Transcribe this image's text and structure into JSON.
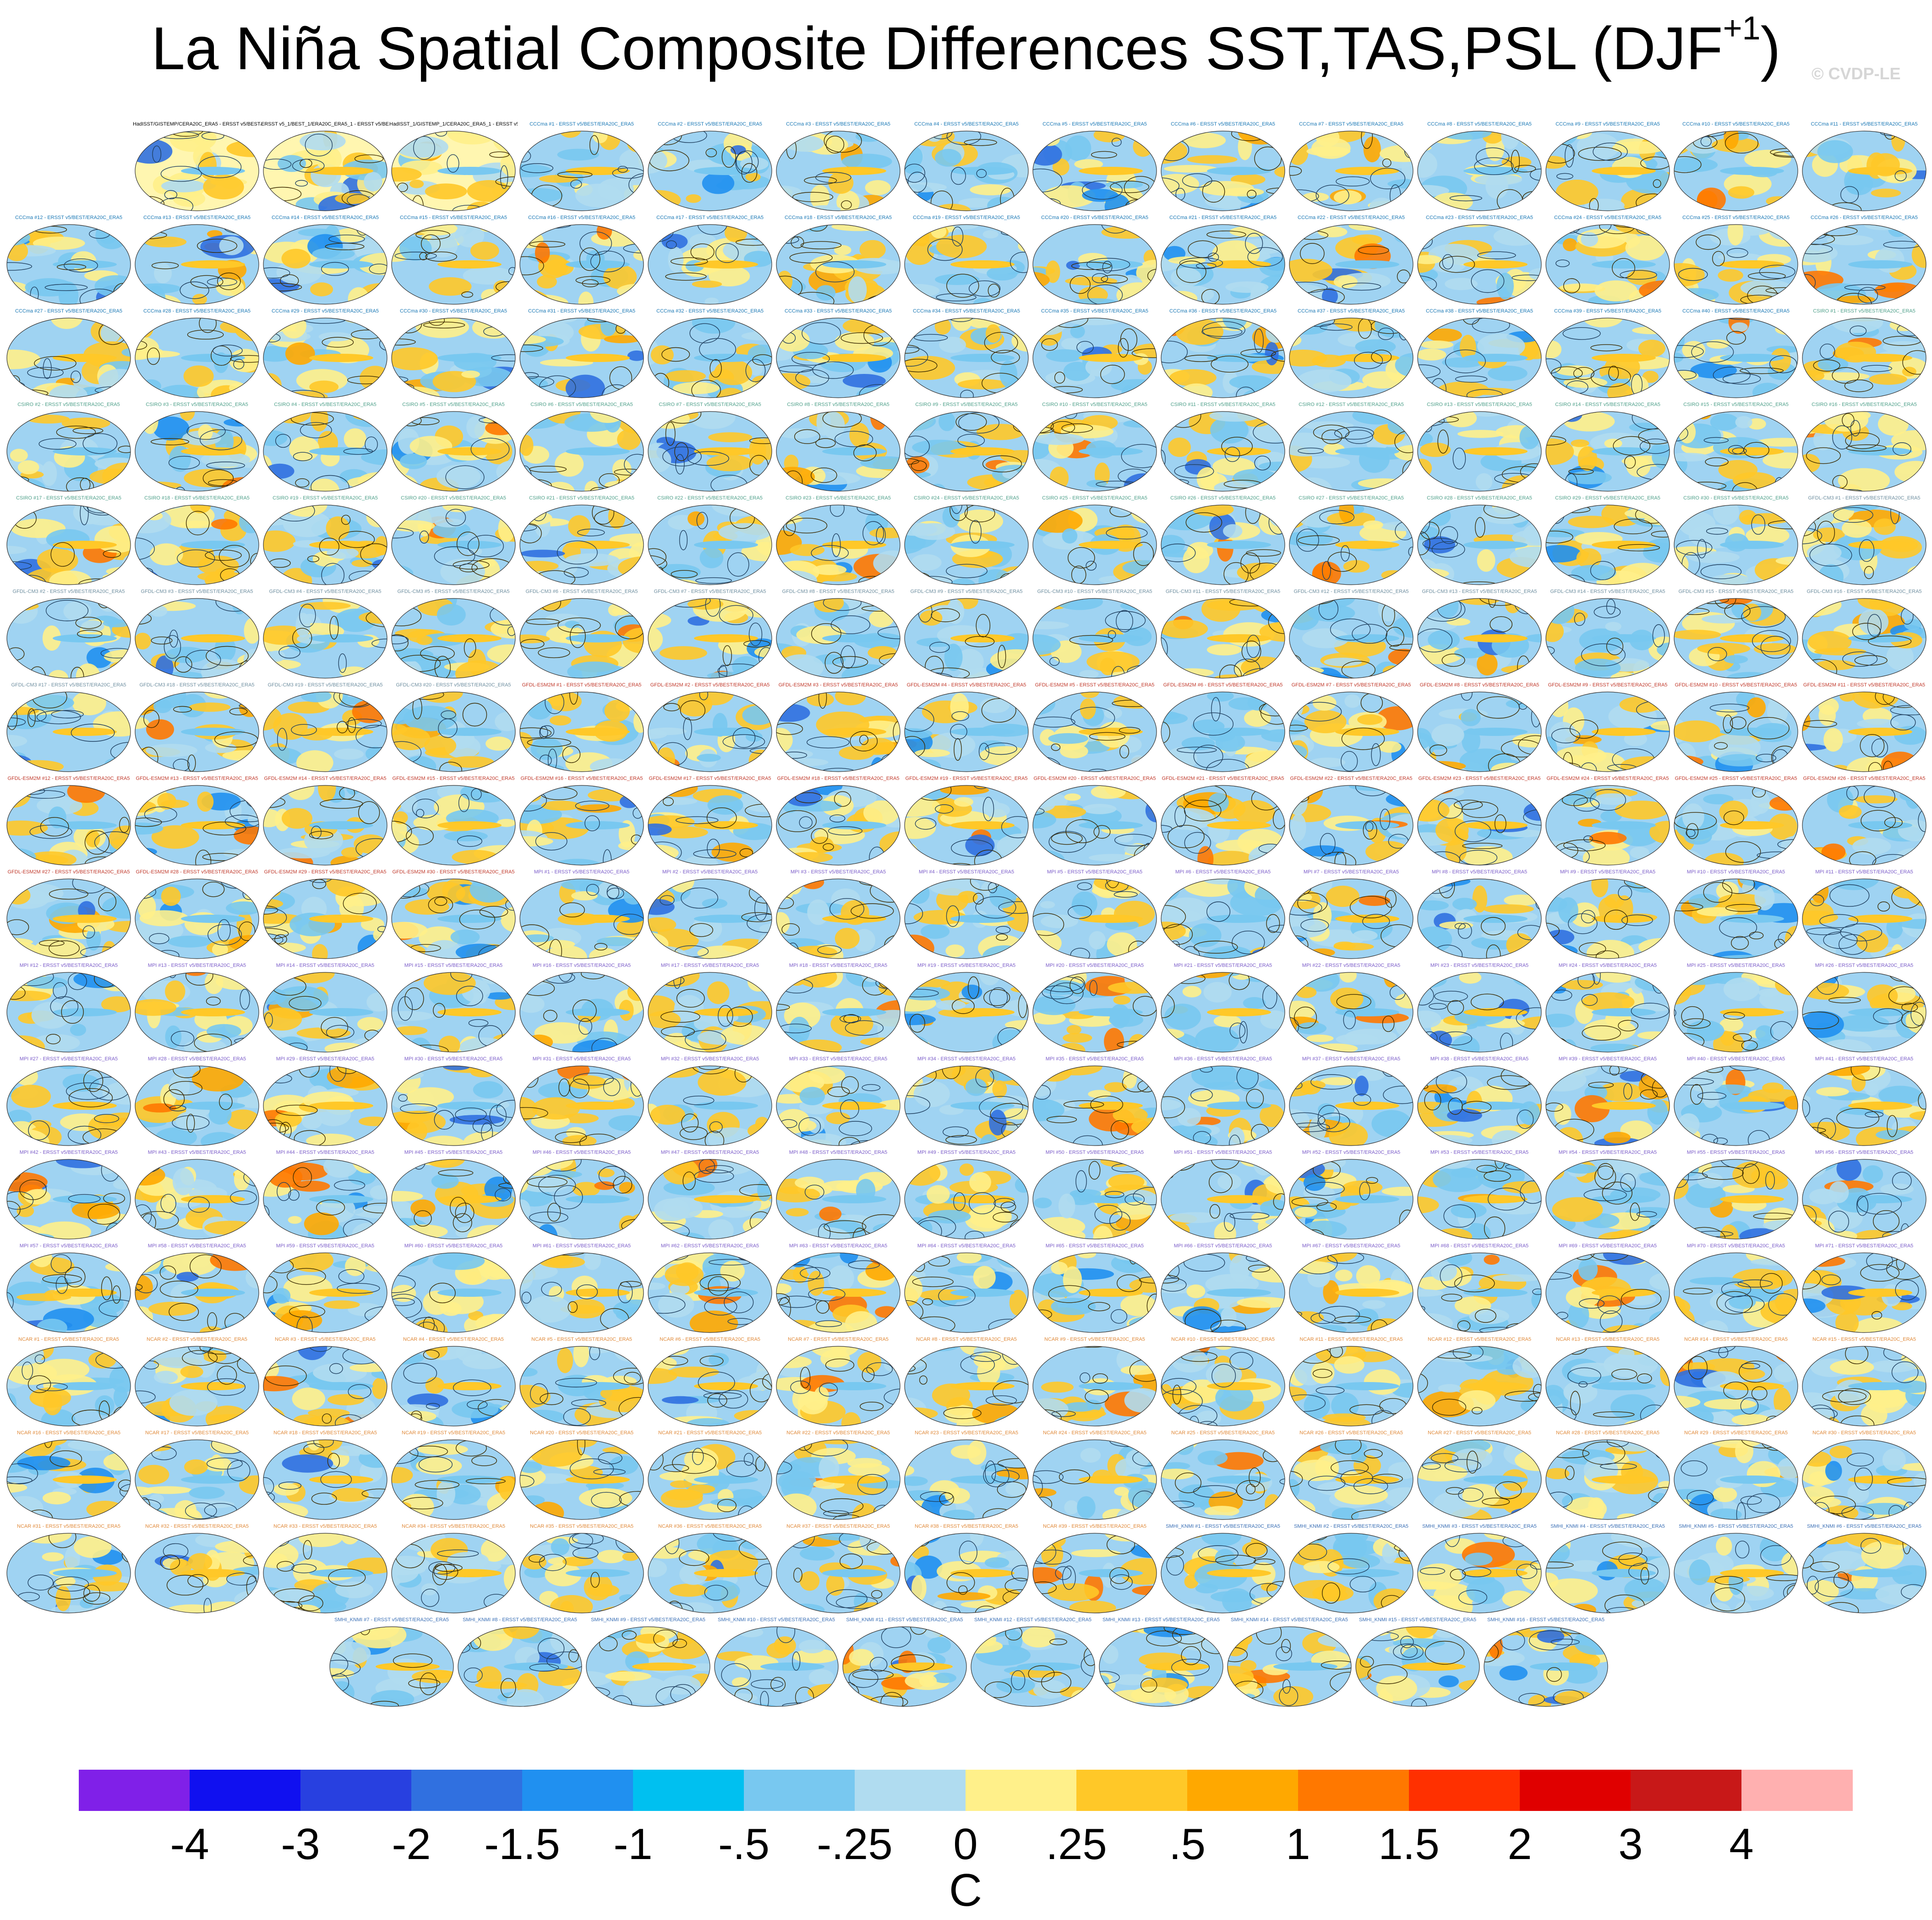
{
  "title": {
    "main": "La Niña Spatial Composite Differences SST,TAS,PSL (DJF",
    "superscript": "+1",
    "close": ")"
  },
  "copyright": "© CVDP-LE",
  "colors": {
    "title_observations": "#000000",
    "title_CCCma": "#1a78b5",
    "title_CSIRO": "#4fa08a",
    "title_GFDL-CM3": "#6f8fa0",
    "title_GFDL-ESM2M": "#c0392b",
    "title_MPI": "#7b5cc9",
    "title_NCAR": "#e08a3a",
    "title_SMHI-KNMI": "#3a6fb5"
  },
  "panel_titles": [
    "HadISST/GISTEMP/CERA20C_ERA5 - ERSST v5/BEST/ERA20C_ERA5",
    "ERSST v5_1/BEST_1/ERA20C_ERA5_1 - ERSST v5/BEST/ERA20C_ERA5",
    "HadISST_1/GISTEMP_1/CERA20C_ERA5_1 - ERSST v5/BEST/ERA20C_ERA5",
    "CCCma #1 - ERSST v5/BEST/ERA20C_ERA5",
    "CCCma #2 - ERSST v5/BEST/ERA20C_ERA5",
    "CCCma #3 - ERSST v5/BEST/ERA20C_ERA5",
    "CCCma #4 - ERSST v5/BEST/ERA20C_ERA5",
    "CCCma #5 - ERSST v5/BEST/ERA20C_ERA5",
    "CCCma #6 - ERSST v5/BEST/ERA20C_ERA5",
    "CCCma #7 - ERSST v5/BEST/ERA20C_ERA5",
    "CCCma #8 - ERSST v5/BEST/ERA20C_ERA5",
    "CCCma #9 - ERSST v5/BEST/ERA20C_ERA5",
    "CCCma #10 - ERSST v5/BEST/ERA20C_ERA5",
    "CCCma #11 - ERSST v5/BEST/ERA20C_ERA5",
    "CCCma #12 - ERSST v5/BEST/ERA20C_ERA5",
    "CCCma #13 - ERSST v5/BEST/ERA20C_ERA5",
    "CCCma #14 - ERSST v5/BEST/ERA20C_ERA5",
    "CCCma #15 - ERSST v5/BEST/ERA20C_ERA5",
    "CCCma #16 - ERSST v5/BEST/ERA20C_ERA5",
    "CCCma #17 - ERSST v5/BEST/ERA20C_ERA5",
    "CCCma #18 - ERSST v5/BEST/ERA20C_ERA5",
    "CCCma #19 - ERSST v5/BEST/ERA20C_ERA5",
    "CCCma #20 - ERSST v5/BEST/ERA20C_ERA5",
    "CCCma #21 - ERSST v5/BEST/ERA20C_ERA5",
    "CCCma #22 - ERSST v5/BEST/ERA20C_ERA5",
    "CCCma #23 - ERSST v5/BEST/ERA20C_ERA5",
    "CCCma #24 - ERSST v5/BEST/ERA20C_ERA5",
    "CCCma #25 - ERSST v5/BEST/ERA20C_ERA5",
    "CCCma #26 - ERSST v5/BEST/ERA20C_ERA5",
    "CCCma #27 - ERSST v5/BEST/ERA20C_ERA5",
    "CCCma #28 - ERSST v5/BEST/ERA20C_ERA5",
    "CCCma #29 - ERSST v5/BEST/ERA20C_ERA5",
    "CCCma #30 - ERSST v5/BEST/ERA20C_ERA5",
    "CCCma #31 - ERSST v5/BEST/ERA20C_ERA5",
    "CCCma #32 - ERSST v5/BEST/ERA20C_ERA5",
    "CCCma #33 - ERSST v5/BEST/ERA20C_ERA5",
    "CCCma #34 - ERSST v5/BEST/ERA20C_ERA5",
    "CCCma #35 - ERSST v5/BEST/ERA20C_ERA5",
    "CCCma #36 - ERSST v5/BEST/ERA20C_ERA5",
    "CCCma #37 - ERSST v5/BEST/ERA20C_ERA5",
    "CCCma #38 - ERSST v5/BEST/ERA20C_ERA5",
    "CCCma #39 - ERSST v5/BEST/ERA20C_ERA5",
    "CCCma #40 - ERSST v5/BEST/ERA20C_ERA5",
    "CSIRO #1 - ERSST v5/BEST/ERA20C_ERA5",
    "CSIRO #2 - ERSST v5/BEST/ERA20C_ERA5",
    "CSIRO #3 - ERSST v5/BEST/ERA20C_ERA5",
    "CSIRO #4 - ERSST v5/BEST/ERA20C_ERA5",
    "CSIRO #5 - ERSST v5/BEST/ERA20C_ERA5",
    "CSIRO #6 - ERSST v5/BEST/ERA20C_ERA5",
    "CSIRO #7 - ERSST v5/BEST/ERA20C_ERA5",
    "CSIRO #8 - ERSST v5/BEST/ERA20C_ERA5",
    "CSIRO #9 - ERSST v5/BEST/ERA20C_ERA5",
    "CSIRO #10 - ERSST v5/BEST/ERA20C_ERA5",
    "CSIRO #11 - ERSST v5/BEST/ERA20C_ERA5",
    "CSIRO #12 - ERSST v5/BEST/ERA20C_ERA5",
    "CSIRO #13 - ERSST v5/BEST/ERA20C_ERA5",
    "CSIRO #14 - ERSST v5/BEST/ERA20C_ERA5",
    "CSIRO #15 - ERSST v5/BEST/ERA20C_ERA5",
    "CSIRO #16 - ERSST v5/BEST/ERA20C_ERA5",
    "CSIRO #17 - ERSST v5/BEST/ERA20C_ERA5",
    "CSIRO #18 - ERSST v5/BEST/ERA20C_ERA5",
    "CSIRO #19 - ERSST v5/BEST/ERA20C_ERA5",
    "CSIRO #20 - ERSST v5/BEST/ERA20C_ERA5",
    "CSIRO #21 - ERSST v5/BEST/ERA20C_ERA5",
    "CSIRO #22 - ERSST v5/BEST/ERA20C_ERA5",
    "CSIRO #23 - ERSST v5/BEST/ERA20C_ERA5",
    "CSIRO #24 - ERSST v5/BEST/ERA20C_ERA5",
    "CSIRO #25 - ERSST v5/BEST/ERA20C_ERA5",
    "CSIRO #26 - ERSST v5/BEST/ERA20C_ERA5",
    "CSIRO #27 - ERSST v5/BEST/ERA20C_ERA5",
    "CSIRO #28 - ERSST v5/BEST/ERA20C_ERA5",
    "CSIRO #29 - ERSST v5/BEST/ERA20C_ERA5",
    "CSIRO #30 - ERSST v5/BEST/ERA20C_ERA5",
    "GFDL-CM3 #1 - ERSST v5/BEST/ERA20C_ERA5",
    "GFDL-CM3 #2 - ERSST v5/BEST/ERA20C_ERA5",
    "GFDL-CM3 #3 - ERSST v5/BEST/ERA20C_ERA5",
    "GFDL-CM3 #4 - ERSST v5/BEST/ERA20C_ERA5",
    "GFDL-CM3 #5 - ERSST v5/BEST/ERA20C_ERA5",
    "GFDL-CM3 #6 - ERSST v5/BEST/ERA20C_ERA5",
    "GFDL-CM3 #7 - ERSST v5/BEST/ERA20C_ERA5",
    "GFDL-CM3 #8 - ERSST v5/BEST/ERA20C_ERA5",
    "GFDL-CM3 #9 - ERSST v5/BEST/ERA20C_ERA5",
    "GFDL-CM3 #10 - ERSST v5/BEST/ERA20C_ERA5",
    "GFDL-CM3 #11 - ERSST v5/BEST/ERA20C_ERA5",
    "GFDL-CM3 #12 - ERSST v5/BEST/ERA20C_ERA5",
    "GFDL-CM3 #13 - ERSST v5/BEST/ERA20C_ERA5",
    "GFDL-CM3 #14 - ERSST v5/BEST/ERA20C_ERA5",
    "GFDL-CM3 #15 - ERSST v5/BEST/ERA20C_ERA5",
    "GFDL-CM3 #16 - ERSST v5/BEST/ERA20C_ERA5",
    "GFDL-CM3 #17 - ERSST v5/BEST/ERA20C_ERA5",
    "GFDL-CM3 #18 - ERSST v5/BEST/ERA20C_ERA5",
    "GFDL-CM3 #19 - ERSST v5/BEST/ERA20C_ERA5",
    "GFDL-CM3 #20 - ERSST v5/BEST/ERA20C_ERA5",
    "GFDL-ESM2M #1 - ERSST v5/BEST/ERA20C_ERA5",
    "GFDL-ESM2M #2 - ERSST v5/BEST/ERA20C_ERA5",
    "GFDL-ESM2M #3 - ERSST v5/BEST/ERA20C_ERA5",
    "GFDL-ESM2M #4 - ERSST v5/BEST/ERA20C_ERA5",
    "GFDL-ESM2M #5 - ERSST v5/BEST/ERA20C_ERA5",
    "GFDL-ESM2M #6 - ERSST v5/BEST/ERA20C_ERA5",
    "GFDL-ESM2M #7 - ERSST v5/BEST/ERA20C_ERA5",
    "GFDL-ESM2M #8 - ERSST v5/BEST/ERA20C_ERA5",
    "GFDL-ESM2M #9 - ERSST v5/BEST/ERA20C_ERA5",
    "GFDL-ESM2M #10 - ERSST v5/BEST/ERA20C_ERA5",
    "GFDL-ESM2M #11 - ERSST v5/BEST/ERA20C_ERA5",
    "GFDL-ESM2M #12 - ERSST v5/BEST/ERA20C_ERA5",
    "GFDL-ESM2M #13 - ERSST v5/BEST/ERA20C_ERA5",
    "GFDL-ESM2M #14 - ERSST v5/BEST/ERA20C_ERA5",
    "GFDL-ESM2M #15 - ERSST v5/BEST/ERA20C_ERA5",
    "GFDL-ESM2M #16 - ERSST v5/BEST/ERA20C_ERA5",
    "GFDL-ESM2M #17 - ERSST v5/BEST/ERA20C_ERA5",
    "GFDL-ESM2M #18 - ERSST v5/BEST/ERA20C_ERA5",
    "GFDL-ESM2M #19 - ERSST v5/BEST/ERA20C_ERA5",
    "GFDL-ESM2M #20 - ERSST v5/BEST/ERA20C_ERA5",
    "GFDL-ESM2M #21 - ERSST v5/BEST/ERA20C_ERA5",
    "GFDL-ESM2M #22 - ERSST v5/BEST/ERA20C_ERA5",
    "GFDL-ESM2M #23 - ERSST v5/BEST/ERA20C_ERA5",
    "GFDL-ESM2M #24 - ERSST v5/BEST/ERA20C_ERA5",
    "GFDL-ESM2M #25 - ERSST v5/BEST/ERA20C_ERA5",
    "GFDL-ESM2M #26 - ERSST v5/BEST/ERA20C_ERA5",
    "GFDL-ESM2M #27 - ERSST v5/BEST/ERA20C_ERA5",
    "GFDL-ESM2M #28 - ERSST v5/BEST/ERA20C_ERA5",
    "GFDL-ESM2M #29 - ERSST v5/BEST/ERA20C_ERA5",
    "GFDL-ESM2M #30 - ERSST v5/BEST/ERA20C_ERA5",
    "MPI #1 - ERSST v5/BEST/ERA20C_ERA5",
    "MPI #2 - ERSST v5/BEST/ERA20C_ERA5",
    "MPI #3 - ERSST v5/BEST/ERA20C_ERA5",
    "MPI #4 - ERSST v5/BEST/ERA20C_ERA5",
    "MPI #5 - ERSST v5/BEST/ERA20C_ERA5",
    "MPI #6 - ERSST v5/BEST/ERA20C_ERA5",
    "MPI #7 - ERSST v5/BEST/ERA20C_ERA5",
    "MPI #8 - ERSST v5/BEST/ERA20C_ERA5",
    "MPI #9 - ERSST v5/BEST/ERA20C_ERA5",
    "MPI #10 - ERSST v5/BEST/ERA20C_ERA5",
    "MPI #11 - ERSST v5/BEST/ERA20C_ERA5",
    "MPI #12 - ERSST v5/BEST/ERA20C_ERA5",
    "MPI #13 - ERSST v5/BEST/ERA20C_ERA5",
    "MPI #14 - ERSST v5/BEST/ERA20C_ERA5",
    "MPI #15 - ERSST v5/BEST/ERA20C_ERA5",
    "MPI #16 - ERSST v5/BEST/ERA20C_ERA5",
    "MPI #17 - ERSST v5/BEST/ERA20C_ERA5",
    "MPI #18 - ERSST v5/BEST/ERA20C_ERA5",
    "MPI #19 - ERSST v5/BEST/ERA20C_ERA5",
    "MPI #20 - ERSST v5/BEST/ERA20C_ERA5",
    "MPI #21 - ERSST v5/BEST/ERA20C_ERA5",
    "MPI #22 - ERSST v5/BEST/ERA20C_ERA5",
    "MPI #23 - ERSST v5/BEST/ERA20C_ERA5",
    "MPI #24 - ERSST v5/BEST/ERA20C_ERA5",
    "MPI #25 - ERSST v5/BEST/ERA20C_ERA5",
    "MPI #26 - ERSST v5/BEST/ERA20C_ERA5",
    "MPI #27 - ERSST v5/BEST/ERA20C_ERA5",
    "MPI #28 - ERSST v5/BEST/ERA20C_ERA5",
    "MPI #29 - ERSST v5/BEST/ERA20C_ERA5",
    "MPI #30 - ERSST v5/BEST/ERA20C_ERA5",
    "MPI #31 - ERSST v5/BEST/ERA20C_ERA5",
    "MPI #32 - ERSST v5/BEST/ERA20C_ERA5",
    "MPI #33 - ERSST v5/BEST/ERA20C_ERA5",
    "MPI #34 - ERSST v5/BEST/ERA20C_ERA5",
    "MPI #35 - ERSST v5/BEST/ERA20C_ERA5",
    "MPI #36 - ERSST v5/BEST/ERA20C_ERA5",
    "MPI #37 - ERSST v5/BEST/ERA20C_ERA5",
    "MPI #38 - ERSST v5/BEST/ERA20C_ERA5",
    "MPI #39 - ERSST v5/BEST/ERA20C_ERA5",
    "MPI #40 - ERSST v5/BEST/ERA20C_ERA5",
    "MPI #41 - ERSST v5/BEST/ERA20C_ERA5",
    "MPI #42 - ERSST v5/BEST/ERA20C_ERA5",
    "MPI #43 - ERSST v5/BEST/ERA20C_ERA5",
    "MPI #44 - ERSST v5/BEST/ERA20C_ERA5",
    "MPI #45 - ERSST v5/BEST/ERA20C_ERA5",
    "MPI #46 - ERSST v5/BEST/ERA20C_ERA5",
    "MPI #47 - ERSST v5/BEST/ERA20C_ERA5",
    "MPI #48 - ERSST v5/BEST/ERA20C_ERA5",
    "MPI #49 - ERSST v5/BEST/ERA20C_ERA5",
    "MPI #50 - ERSST v5/BEST/ERA20C_ERA5",
    "MPI #51 - ERSST v5/BEST/ERA20C_ERA5",
    "MPI #52 - ERSST v5/BEST/ERA20C_ERA5",
    "MPI #53 - ERSST v5/BEST/ERA20C_ERA5",
    "MPI #54 - ERSST v5/BEST/ERA20C_ERA5",
    "MPI #55 - ERSST v5/BEST/ERA20C_ERA5",
    "MPI #56 - ERSST v5/BEST/ERA20C_ERA5",
    "MPI #57 - ERSST v5/BEST/ERA20C_ERA5",
    "MPI #58 - ERSST v5/BEST/ERA20C_ERA5",
    "MPI #59 - ERSST v5/BEST/ERA20C_ERA5",
    "MPI #60 - ERSST v5/BEST/ERA20C_ERA5",
    "MPI #61 - ERSST v5/BEST/ERA20C_ERA5",
    "MPI #62 - ERSST v5/BEST/ERA20C_ERA5",
    "MPI #63 - ERSST v5/BEST/ERA20C_ERA5",
    "MPI #64 - ERSST v5/BEST/ERA20C_ERA5",
    "MPI #65 - ERSST v5/BEST/ERA20C_ERA5",
    "MPI #66 - ERSST v5/BEST/ERA20C_ERA5",
    "MPI #67 - ERSST v5/BEST/ERA20C_ERA5",
    "MPI #68 - ERSST v5/BEST/ERA20C_ERA5",
    "MPI #69 - ERSST v5/BEST/ERA20C_ERA5",
    "MPI #70 - ERSST v5/BEST/ERA20C_ERA5",
    "MPI #71 - ERSST v5/BEST/ERA20C_ERA5",
    "NCAR #1 - ERSST v5/BEST/ERA20C_ERA5",
    "NCAR #2 - ERSST v5/BEST/ERA20C_ERA5",
    "NCAR #3 - ERSST v5/BEST/ERA20C_ERA5",
    "NCAR #4 - ERSST v5/BEST/ERA20C_ERA5",
    "NCAR #5 - ERSST v5/BEST/ERA20C_ERA5",
    "NCAR #6 - ERSST v5/BEST/ERA20C_ERA5",
    "NCAR #7 - ERSST v5/BEST/ERA20C_ERA5",
    "NCAR #8 - ERSST v5/BEST/ERA20C_ERA5",
    "NCAR #9 - ERSST v5/BEST/ERA20C_ERA5",
    "NCAR #10 - ERSST v5/BEST/ERA20C_ERA5",
    "NCAR #11 - ERSST v5/BEST/ERA20C_ERA5",
    "NCAR #12 - ERSST v5/BEST/ERA20C_ERA5",
    "NCAR #13 - ERSST v5/BEST/ERA20C_ERA5",
    "NCAR #14 - ERSST v5/BEST/ERA20C_ERA5",
    "NCAR #15 - ERSST v5/BEST/ERA20C_ERA5",
    "NCAR #16 - ERSST v5/BEST/ERA20C_ERA5",
    "NCAR #17 - ERSST v5/BEST/ERA20C_ERA5",
    "NCAR #18 - ERSST v5/BEST/ERA20C_ERA5",
    "NCAR #19 - ERSST v5/BEST/ERA20C_ERA5",
    "NCAR #20 - ERSST v5/BEST/ERA20C_ERA5",
    "NCAR #21 - ERSST v5/BEST/ERA20C_ERA5",
    "NCAR #22 - ERSST v5/BEST/ERA20C_ERA5",
    "NCAR #23 - ERSST v5/BEST/ERA20C_ERA5",
    "NCAR #24 - ERSST v5/BEST/ERA20C_ERA5",
    "NCAR #25 - ERSST v5/BEST/ERA20C_ERA5",
    "NCAR #26 - ERSST v5/BEST/ERA20C_ERA5",
    "NCAR #27 - ERSST v5/BEST/ERA20C_ERA5",
    "NCAR #28 - ERSST v5/BEST/ERA20C_ERA5",
    "NCAR #29 - ERSST v5/BEST/ERA20C_ERA5",
    "NCAR #30 - ERSST v5/BEST/ERA20C_ERA5",
    "NCAR #31 - ERSST v5/BEST/ERA20C_ERA5",
    "NCAR #32 - ERSST v5/BEST/ERA20C_ERA5",
    "NCAR #33 - ERSST v5/BEST/ERA20C_ERA5",
    "NCAR #34 - ERSST v5/BEST/ERA20C_ERA5",
    "NCAR #35 - ERSST v5/BEST/ERA20C_ERA5",
    "NCAR #36 - ERSST v5/BEST/ERA20C_ERA5",
    "NCAR #37 - ERSST v5/BEST/ERA20C_ERA5",
    "NCAR #38 - ERSST v5/BEST/ERA20C_ERA5",
    "NCAR #39 - ERSST v5/BEST/ERA20C_ERA5",
    "SMHI_KNMI #1 - ERSST v5/BEST/ERA20C_ERA5",
    "SMHI_KNMI #2 - ERSST v5/BEST/ERA20C_ERA5",
    "SMHI_KNMI #3 - ERSST v5/BEST/ERA20C_ERA5",
    "SMHI_KNMI #4 - ERSST v5/BEST/ERA20C_ERA5",
    "SMHI_KNMI #5 - ERSST v5/BEST/ERA20C_ERA5",
    "SMHI_KNMI #6 - ERSST v5/BEST/ERA20C_ERA5",
    "SMHI_KNMI #7 - ERSST v5/BEST/ERA20C_ERA5",
    "SMHI_KNMI #8 - ERSST v5/BEST/ERA20C_ERA5",
    "SMHI_KNMI #9 - ERSST v5/BEST/ERA20C_ERA5",
    "SMHI_KNMI #10 - ERSST v5/BEST/ERA20C_ERA5",
    "SMHI_KNMI #11 - ERSST v5/BEST/ERA20C_ERA5",
    "SMHI_KNMI #12 - ERSST v5/BEST/ERA20C_ERA5",
    "SMHI_KNMI #13 - ERSST v5/BEST/ERA20C_ERA5",
    "SMHI_KNMI #14 - ERSST v5/BEST/ERA20C_ERA5",
    "SMHI_KNMI #15 - ERSST v5/BEST/ERA20C_ERA5",
    "SMHI_KNMI #16 - ERSST v5/BEST/ERA20C_ERA5"
  ],
  "chart_data": {
    "type": "heatmap",
    "title": "La Niña Spatial Composite Differences SST,TAS,PSL (DJF+1)",
    "colorbar": {
      "unit": "C",
      "levels": [
        "-4",
        "-3",
        "-2",
        "-1.5",
        "-1",
        "-.5",
        "-.25",
        "0",
        ".25",
        ".5",
        "1",
        "1.5",
        "2",
        "3",
        "4"
      ],
      "colors": [
        "#8020e8",
        "#1010f0",
        "#2840e0",
        "#3070e0",
        "#2090f0",
        "#00c0f0",
        "#78c8f0",
        "#b0dcf0",
        "#fff08a",
        "#ffc828",
        "#ffa800",
        "#ff7800",
        "#ff3000",
        "#e00000",
        "#c81818",
        "#ffb0b0"
      ]
    }
  }
}
